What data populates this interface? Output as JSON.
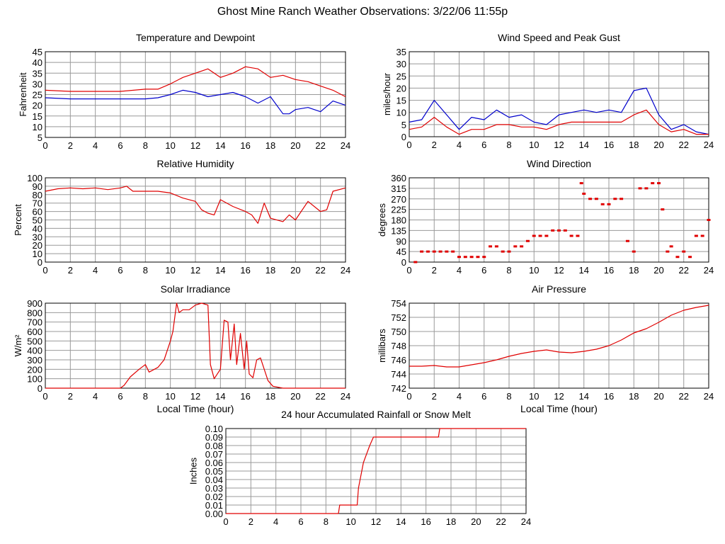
{
  "page": {
    "title": "Ghost Mine Ranch Weather Observations: 3/22/06 11:55p"
  },
  "colors": {
    "primary": "#e00000",
    "secondary": "#0000cc",
    "grid": "#999999",
    "axis": "#000000"
  },
  "chart_data": [
    {
      "id": "temperature",
      "type": "line",
      "title": "Temperature and Dewpoint",
      "xlabel": "",
      "ylabel": "Fahrenheit",
      "xlim": [
        0,
        24
      ],
      "ylim": [
        5,
        45
      ],
      "xticks": [
        0,
        2,
        4,
        6,
        8,
        10,
        12,
        14,
        16,
        18,
        20,
        22,
        24
      ],
      "yticks": [
        5,
        10,
        15,
        20,
        25,
        30,
        35,
        40,
        45
      ],
      "grid": true,
      "series": [
        {
          "color": "#e00000",
          "x": [
            0,
            2,
            4,
            6,
            8,
            9,
            10,
            11,
            12,
            13,
            13.5,
            14,
            15,
            16,
            17,
            18,
            19,
            20,
            21,
            22,
            23,
            24
          ],
          "y": [
            27,
            26.5,
            26.5,
            26.5,
            27.5,
            27.5,
            30,
            33,
            35,
            37,
            35,
            33,
            35,
            38,
            37,
            33,
            34,
            32,
            31,
            29,
            27,
            24
          ]
        },
        {
          "color": "#0000cc",
          "x": [
            0,
            2,
            4,
            6,
            8,
            9,
            10,
            11,
            12,
            13,
            14,
            15,
            16,
            17,
            18,
            19,
            19.5,
            20,
            21,
            22,
            23,
            24
          ],
          "y": [
            23.5,
            23,
            23,
            23,
            23,
            23.5,
            25,
            27,
            26,
            24,
            25,
            26,
            24,
            21,
            24,
            16,
            16,
            18,
            19,
            17,
            22,
            20
          ]
        }
      ]
    },
    {
      "id": "wind-speed",
      "type": "line",
      "title": "Wind Speed and Peak Gust",
      "xlabel": "",
      "ylabel": "miles/hour",
      "xlim": [
        0,
        24
      ],
      "ylim": [
        0,
        35
      ],
      "xticks": [
        0,
        2,
        4,
        6,
        8,
        10,
        12,
        14,
        16,
        18,
        20,
        22,
        24
      ],
      "yticks": [
        0,
        5,
        10,
        15,
        20,
        25,
        30,
        35
      ],
      "grid": true,
      "series": [
        {
          "color": "#0000cc",
          "x": [
            0,
            1,
            2,
            3,
            4,
            5,
            6,
            7,
            8,
            9,
            10,
            11,
            12,
            13,
            14,
            15,
            16,
            17,
            18,
            19,
            20,
            21,
            22,
            23,
            24
          ],
          "y": [
            6,
            7,
            15,
            9,
            3,
            8,
            7,
            11,
            8,
            9,
            6,
            5,
            9,
            10,
            11,
            10,
            11,
            10,
            19,
            20,
            9,
            3,
            5,
            2,
            1
          ]
        },
        {
          "color": "#e00000",
          "x": [
            0,
            1,
            2,
            3,
            4,
            5,
            6,
            7,
            8,
            9,
            10,
            11,
            12,
            13,
            14,
            15,
            16,
            17,
            18,
            19,
            20,
            21,
            22,
            23,
            24
          ],
          "y": [
            3,
            4,
            8,
            4,
            1,
            3,
            3,
            5,
            5,
            4,
            4,
            3,
            5,
            6,
            6,
            6,
            6,
            6,
            9,
            11,
            5,
            2,
            3,
            1,
            1
          ]
        }
      ]
    },
    {
      "id": "humidity",
      "type": "line",
      "title": "Relative Humidity",
      "xlabel": "",
      "ylabel": "Percent",
      "xlim": [
        0,
        24
      ],
      "ylim": [
        0,
        100
      ],
      "xticks": [
        0,
        2,
        4,
        6,
        8,
        10,
        12,
        14,
        16,
        18,
        20,
        22,
        24
      ],
      "yticks": [
        0,
        10,
        20,
        30,
        40,
        50,
        60,
        70,
        80,
        90,
        100
      ],
      "grid": true,
      "series": [
        {
          "color": "#e00000",
          "x": [
            0,
            1,
            2,
            3,
            4,
            5,
            6,
            6.5,
            7,
            8,
            9,
            10,
            11,
            12,
            12.5,
            13,
            13.5,
            14,
            15,
            16,
            16.5,
            17,
            17.5,
            18,
            19,
            19.5,
            20,
            21,
            22,
            22.5,
            23,
            24
          ],
          "y": [
            84,
            87,
            88,
            87,
            88,
            86,
            88,
            90,
            84,
            84,
            84,
            82,
            76,
            72,
            62,
            58,
            56,
            74,
            66,
            60,
            56,
            46,
            70,
            52,
            48,
            56,
            50,
            72,
            60,
            62,
            84,
            88
          ]
        }
      ]
    },
    {
      "id": "wind-direction",
      "type": "scatter",
      "title": "Wind Direction",
      "xlabel": "",
      "ylabel": "degrees",
      "xlim": [
        0,
        24
      ],
      "ylim": [
        0,
        360
      ],
      "xticks": [
        0,
        2,
        4,
        6,
        8,
        10,
        12,
        14,
        16,
        18,
        20,
        22,
        24
      ],
      "yticks": [
        0,
        45,
        90,
        135,
        180,
        225,
        270,
        315,
        360
      ],
      "grid": true,
      "series": [
        {
          "color": "#e00000",
          "x": [
            0.5,
            1.0,
            1.5,
            2.0,
            2.5,
            3.0,
            3.5,
            4.0,
            4.5,
            5.0,
            5.5,
            6.0,
            6.5,
            7.0,
            7.5,
            8.0,
            8.5,
            9.0,
            9.5,
            10.0,
            10.5,
            11.0,
            11.5,
            12.0,
            12.5,
            13.0,
            13.5,
            13.8,
            14.0,
            14.5,
            15.0,
            15.5,
            16.0,
            16.5,
            17.0,
            17.5,
            18.0,
            18.5,
            19.0,
            19.5,
            20.0,
            20.3,
            20.7,
            21.0,
            21.5,
            22.0,
            22.5,
            23.0,
            23.5,
            24.0
          ],
          "y": [
            0,
            45,
            45,
            45,
            45,
            45,
            45,
            22,
            22,
            22,
            22,
            22,
            67,
            67,
            45,
            45,
            67,
            67,
            90,
            112,
            112,
            112,
            135,
            135,
            135,
            112,
            112,
            337,
            292,
            270,
            270,
            247,
            247,
            270,
            270,
            90,
            45,
            315,
            315,
            337,
            337,
            225,
            45,
            67,
            22,
            45,
            22,
            112,
            112,
            180
          ]
        }
      ]
    },
    {
      "id": "solar",
      "type": "line",
      "title": "Solar Irradiance",
      "xlabel": "Local Time (hour)",
      "ylabel": "W/m²",
      "xlim": [
        0,
        24
      ],
      "ylim": [
        0,
        900
      ],
      "xticks": [
        0,
        2,
        4,
        6,
        8,
        10,
        12,
        14,
        16,
        18,
        20,
        22,
        24
      ],
      "yticks": [
        0,
        100,
        200,
        300,
        400,
        500,
        600,
        700,
        800,
        900
      ],
      "grid": true,
      "series": [
        {
          "color": "#e00000",
          "x": [
            0,
            6,
            6.3,
            6.8,
            7.5,
            8,
            8.3,
            9,
            9.5,
            10,
            10.2,
            10.5,
            10.7,
            11,
            11.5,
            12,
            12.5,
            13,
            13.2,
            13.5,
            14,
            14.3,
            14.6,
            14.8,
            15.1,
            15.3,
            15.6,
            15.9,
            16.1,
            16.3,
            16.6,
            16.9,
            17.2,
            17.5,
            17.8,
            18.2,
            19,
            24
          ],
          "y": [
            0,
            0,
            30,
            120,
            200,
            250,
            170,
            220,
            300,
            500,
            600,
            900,
            800,
            830,
            830,
            880,
            900,
            880,
            250,
            100,
            200,
            720,
            700,
            300,
            680,
            250,
            580,
            200,
            500,
            150,
            110,
            300,
            320,
            200,
            80,
            20,
            0,
            0
          ]
        }
      ]
    },
    {
      "id": "pressure",
      "type": "line",
      "title": "Air Pressure",
      "xlabel": "Local Time (hour)",
      "ylabel": "millibars",
      "xlim": [
        0,
        24
      ],
      "ylim": [
        742,
        754
      ],
      "xticks": [
        0,
        2,
        4,
        6,
        8,
        10,
        12,
        14,
        16,
        18,
        20,
        22,
        24
      ],
      "yticks": [
        742,
        744,
        746,
        748,
        750,
        752,
        754
      ],
      "grid": true,
      "series": [
        {
          "color": "#e00000",
          "x": [
            0,
            1,
            2,
            3,
            4,
            5,
            6,
            7,
            8,
            9,
            10,
            11,
            12,
            13,
            14,
            15,
            16,
            17,
            18,
            19,
            20,
            21,
            22,
            23,
            24
          ],
          "y": [
            745.1,
            745.1,
            745.2,
            745.0,
            745.0,
            745.3,
            745.6,
            746.0,
            746.5,
            746.9,
            747.2,
            747.4,
            747.1,
            747.0,
            747.2,
            747.5,
            748.0,
            748.8,
            749.8,
            750.4,
            751.3,
            752.3,
            753.0,
            753.4,
            753.7
          ]
        }
      ]
    },
    {
      "id": "rainfall",
      "type": "line",
      "title": "24 hour Accumulated Rainfall or Snow Melt",
      "xlabel": "",
      "ylabel": "Inches",
      "xlim": [
        0,
        24
      ],
      "ylim": [
        0,
        0.1
      ],
      "xticks": [
        0,
        2,
        4,
        6,
        8,
        10,
        12,
        14,
        16,
        18,
        20,
        22,
        24
      ],
      "yticks": [
        0.0,
        0.01,
        0.02,
        0.03,
        0.04,
        0.05,
        0.06,
        0.07,
        0.08,
        0.09,
        0.1
      ],
      "ytick_labels": [
        "0.00",
        "0.01",
        "0.02",
        "0.03",
        "0.04",
        "0.05",
        "0.06",
        "0.07",
        "0.08",
        "0.09",
        "0.10"
      ],
      "grid": true,
      "series": [
        {
          "color": "#e00000",
          "x": [
            0,
            9,
            9.1,
            10.5,
            10.6,
            11,
            11.5,
            11.8,
            12,
            17,
            17.1,
            24
          ],
          "y": [
            0,
            0,
            0.01,
            0.01,
            0.03,
            0.06,
            0.08,
            0.09,
            0.09,
            0.09,
            0.1,
            0.1
          ]
        }
      ]
    }
  ]
}
